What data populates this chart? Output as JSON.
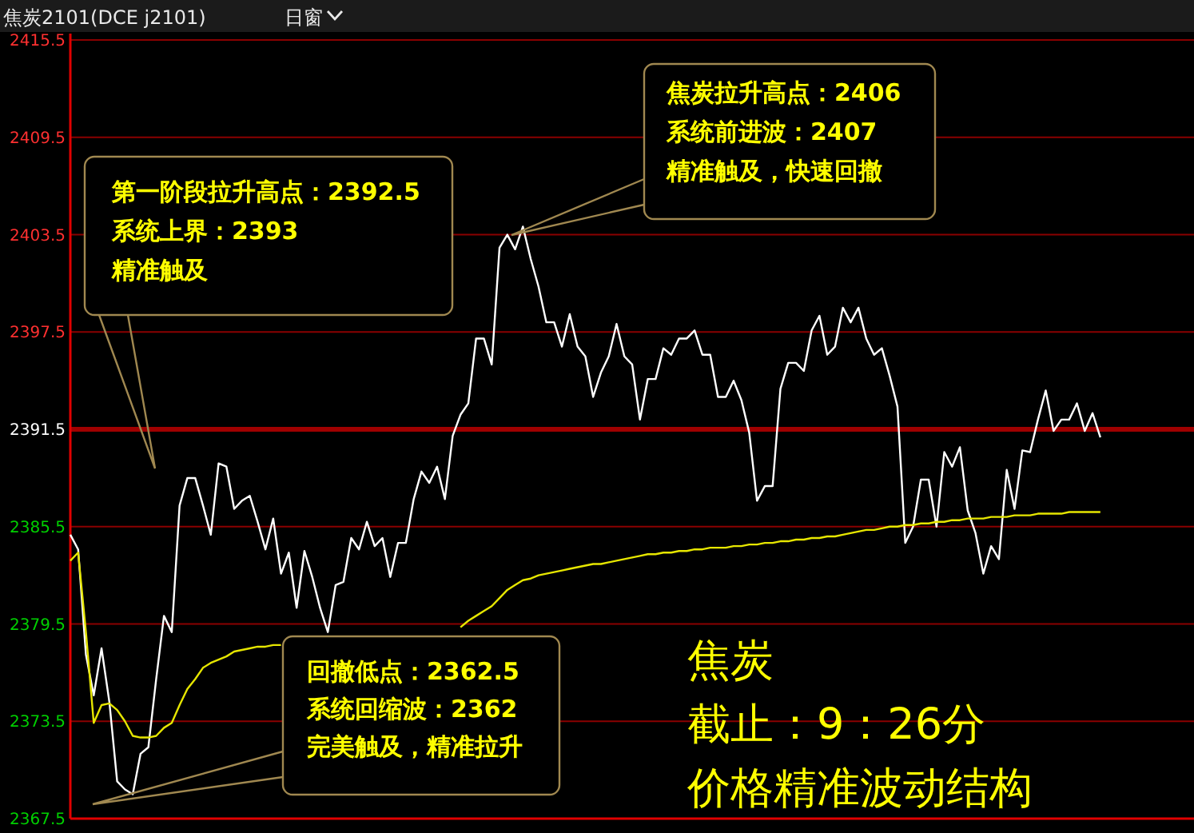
{
  "chart_data": {
    "type": "line",
    "title": "焦炭2101(DCE j2101)",
    "subtitle": "日窗",
    "categories": [
      null,
      null,
      null,
      null,
      null,
      null,
      null,
      null,
      null,
      null,
      null,
      null,
      null,
      null,
      null,
      null,
      null,
      null,
      null,
      null,
      null,
      null,
      null,
      null,
      null,
      null,
      null,
      null,
      null,
      null,
      null,
      null,
      null,
      null,
      null,
      null,
      null,
      null,
      null,
      null,
      null,
      null,
      null,
      null,
      null,
      null,
      null,
      null,
      null,
      null,
      null,
      null,
      null,
      null,
      null,
      null,
      null,
      null,
      null,
      null,
      null,
      null,
      null,
      null,
      null,
      null,
      null,
      null,
      null,
      null,
      null,
      null,
      null,
      null,
      null,
      null,
      null,
      null,
      null,
      null,
      null,
      null,
      null,
      null,
      null,
      null,
      null,
      null,
      null,
      null,
      null,
      null,
      null,
      null,
      null,
      null,
      null,
      null,
      null,
      null,
      null,
      null,
      null,
      null,
      null,
      null,
      null,
      null,
      null,
      null,
      null,
      null,
      null,
      null,
      null,
      null,
      null,
      null,
      null,
      null,
      null,
      null,
      null,
      null,
      null,
      null,
      null,
      null,
      null,
      null,
      null,
      null,
      null,
      null,
      null,
      null,
      null,
      null,
      null,
      null,
      null,
      null,
      null,
      null,
      null
    ],
    "series": [
      {
        "color": "#ffffff",
        "values": [
          2385.0,
          2384.1,
          2377.6,
          2375.1,
          2378.0,
          2374.7,
          2369.8,
          2369.3,
          2369.0,
          2371.5,
          2371.9,
          2376.1,
          2380.0,
          2379.0,
          2386.8,
          2388.5,
          2388.5,
          2386.8,
          2385.0,
          2389.4,
          2389.2,
          2386.6,
          2387.1,
          2387.4,
          2385.8,
          2384.1,
          2386.0,
          2382.6,
          2383.9,
          2380.5,
          2384.0,
          2382.4,
          2380.5,
          2379.0,
          2381.9,
          2382.1,
          2384.8,
          2384.1,
          2385.8,
          2384.3,
          2384.8,
          2382.4,
          2384.5,
          2384.5,
          2387.2,
          2388.9,
          2388.2,
          2389.2,
          2387.2,
          2391.1,
          2392.4,
          2393.1,
          2397.1,
          2397.1,
          2395.5,
          2402.7,
          2403.5,
          2402.6,
          2404.0,
          2402.0,
          2400.3,
          2398.1,
          2398.1,
          2396.6,
          2398.6,
          2396.6,
          2396.0,
          2393.5,
          2395.0,
          2396.0,
          2398.0,
          2396.0,
          2395.5,
          2392.1,
          2394.6,
          2394.6,
          2396.5,
          2396.1,
          2397.1,
          2397.1,
          2397.6,
          2396.1,
          2396.1,
          2393.5,
          2393.5,
          2394.5,
          2393.3,
          2391.3,
          2387.1,
          2388.0,
          2388.0,
          2394.0,
          2395.6,
          2395.6,
          2395.1,
          2397.6,
          2398.5,
          2396.1,
          2396.6,
          2399.0,
          2398.1,
          2399.0,
          2397.1,
          2396.1,
          2396.5,
          2394.8,
          2392.9,
          2384.5,
          2385.5,
          2388.4,
          2388.4,
          2385.5,
          2390.1,
          2389.2,
          2390.4,
          2386.5,
          2385.1,
          2382.6,
          2384.3,
          2383.5,
          2389.0,
          2386.6,
          2390.2,
          2390.1,
          2392.1,
          2393.9,
          2391.4,
          2392.1,
          2392.1,
          2393.1,
          2391.4,
          2392.5,
          2391.0,
          null,
          null,
          null,
          null,
          null,
          null,
          null,
          null,
          null,
          null,
          null,
          null
        ]
      },
      {
        "color": "#e6e600",
        "values": [
          2383.4,
          2383.9,
          2379.0,
          2373.4,
          2374.5,
          2374.6,
          2374.2,
          2373.5,
          2372.6,
          2372.5,
          2372.5,
          2372.6,
          2373.1,
          2373.4,
          2374.5,
          2375.5,
          2376.1,
          2376.8,
          2377.1,
          2377.3,
          2377.5,
          2377.8,
          2377.9,
          2378.0,
          2378.1,
          2378.1,
          2378.2,
          2378.2,
          null,
          null,
          null,
          null,
          null,
          null,
          null,
          null,
          null,
          null,
          null,
          null,
          null,
          null,
          null,
          null,
          null,
          null,
          null,
          null,
          null,
          null,
          2379.3,
          2379.7,
          2380.0,
          2380.3,
          2380.6,
          2381.1,
          2381.6,
          2381.9,
          2382.2,
          2382.3,
          2382.5,
          2382.6,
          2382.7,
          2382.8,
          2382.9,
          2383.0,
          2383.1,
          2383.2,
          2383.2,
          2383.3,
          2383.4,
          2383.5,
          2383.6,
          2383.7,
          2383.8,
          2383.8,
          2383.9,
          2383.9,
          2384.0,
          2384.0,
          2384.1,
          2384.1,
          2384.2,
          2384.2,
          2384.2,
          2384.3,
          2384.3,
          2384.4,
          2384.4,
          2384.5,
          2384.5,
          2384.6,
          2384.6,
          2384.7,
          2384.7,
          2384.8,
          2384.8,
          2384.9,
          2384.9,
          2385.0,
          2385.1,
          2385.2,
          2385.3,
          2385.3,
          2385.4,
          2385.5,
          2385.5,
          2385.6,
          2385.6,
          2385.7,
          2385.7,
          2385.8,
          2385.8,
          2385.9,
          2385.9,
          2386.0,
          2386.0,
          2386.0,
          2386.1,
          2386.1,
          2386.1,
          2386.2,
          2386.2,
          2386.2,
          2386.3,
          2386.3,
          2386.3,
          2386.3,
          2386.4,
          2386.4,
          2386.4,
          2386.4,
          2386.4,
          null,
          null,
          null,
          null,
          null,
          null,
          null,
          null,
          null,
          null,
          null,
          null
        ]
      }
    ],
    "ylim": [
      2367.5,
      2415.9
    ],
    "yticks": [
      2415.5,
      2409.5,
      2403.5,
      2397.5,
      2391.5,
      2385.5,
      2379.5,
      2373.5,
      2367.5
    ],
    "grid": "y",
    "tick_labels": "y",
    "line_style": "solid",
    "ref_lines": [
      {
        "axis": "y",
        "value": 2391.5,
        "color": "#a00000"
      }
    ],
    "annotations": [
      "第一阶段拉升高点：2392.5\n系统上界：2393\n精准触及",
      "焦炭拉升高点：2406\n系统前进波：2407\n精准触及，快速回撤",
      "回撤低点：2362.5\n系统回缩波：2362\n完美触及，精准拉升",
      "焦炭",
      "截止：9：26分",
      "价格精准波动结构"
    ]
  }
}
